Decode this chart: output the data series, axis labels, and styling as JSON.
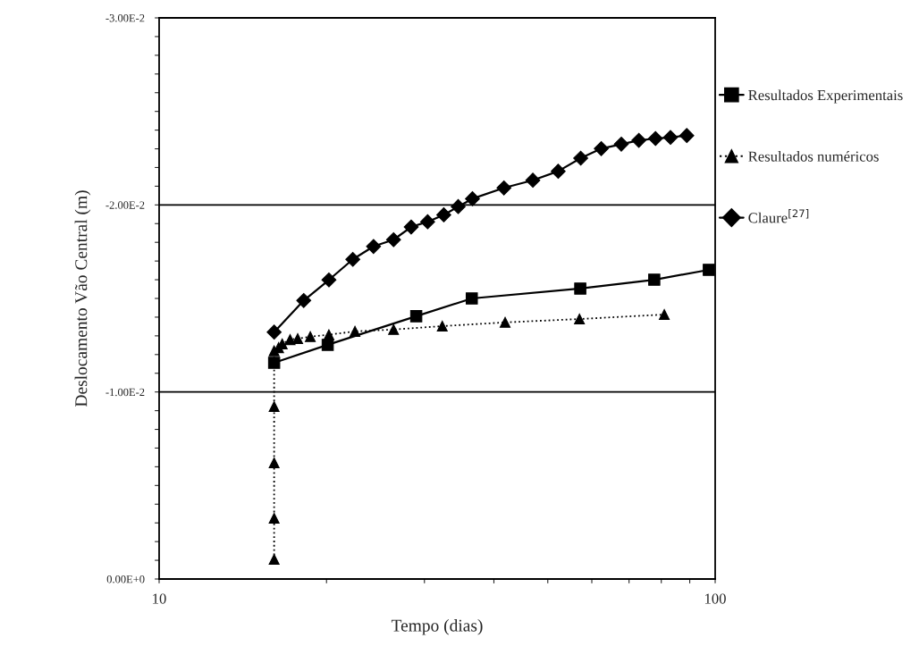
{
  "chart_data": {
    "type": "line",
    "xlabel": "Tempo (dias)",
    "ylabel": "Deslocamento Vão Central (m)",
    "log": "x",
    "grid": "y",
    "legend": "right",
    "xlim": [
      10,
      100
    ],
    "xticks": [
      10,
      {
        "value": 20,
        "label": null
      },
      {
        "value": 30,
        "label": null
      },
      {
        "value": 40,
        "label": null
      },
      {
        "value": 50,
        "label": null
      },
      {
        "value": 60,
        "label": null
      },
      {
        "value": 70,
        "label": null
      },
      {
        "value": 80,
        "label": null
      },
      {
        "value": 90,
        "label": null
      },
      100
    ],
    "ylim": [
      0,
      -0.03
    ],
    "yticks": [
      {
        "value": 0,
        "label": "0.00E+0"
      },
      {
        "value": -0.001,
        "label": null
      },
      {
        "value": -0.002,
        "label": null
      },
      {
        "value": -0.003,
        "label": null
      },
      {
        "value": -0.004,
        "label": null
      },
      {
        "value": -0.005,
        "label": null
      },
      {
        "value": -0.006,
        "label": null
      },
      {
        "value": -0.007,
        "label": null
      },
      {
        "value": -0.008,
        "label": null
      },
      {
        "value": -0.009,
        "label": null
      },
      {
        "value": -0.01,
        "label": "-1.00E-2"
      },
      {
        "value": -0.011,
        "label": null
      },
      {
        "value": -0.012,
        "label": null
      },
      {
        "value": -0.013,
        "label": null
      },
      {
        "value": -0.014,
        "label": null
      },
      {
        "value": -0.015,
        "label": null
      },
      {
        "value": -0.016,
        "label": null
      },
      {
        "value": -0.017,
        "label": null
      },
      {
        "value": -0.018,
        "label": null
      },
      {
        "value": -0.019,
        "label": null
      },
      {
        "value": -0.02,
        "label": "-2.00E-2"
      },
      {
        "value": -0.021,
        "label": null
      },
      {
        "value": -0.022,
        "label": null
      },
      {
        "value": -0.023,
        "label": null
      },
      {
        "value": -0.024,
        "label": null
      },
      {
        "value": -0.025,
        "label": null
      },
      {
        "value": -0.026,
        "label": null
      },
      {
        "value": -0.027,
        "label": null
      },
      {
        "value": -0.028,
        "label": null
      },
      {
        "value": -0.029,
        "label": null
      },
      {
        "value": -0.03,
        "label": "-3.00E-2"
      }
    ],
    "series": [
      {
        "name": "Resultados Experimentais",
        "color": "#000000",
        "marker": "square",
        "line_style": "solid",
        "x": [
          16.1,
          20.1,
          29.0,
          36.5,
          57.2,
          77.7,
          97.4
        ],
        "values": [
          -0.01156,
          -0.01252,
          -0.01405,
          -0.015,
          -0.01553,
          -0.016,
          -0.01653
        ]
      },
      {
        "name": "Resultados numéricos",
        "color": "#000000",
        "marker": "triangle",
        "line_style": "dotted",
        "x": [
          16.1,
          16.1,
          16.1,
          16.1,
          16.1,
          16.4,
          16.65,
          17.2,
          17.75,
          18.7,
          20.2,
          22.5,
          26.4,
          32.3,
          41.9,
          57.0,
          81.0
        ],
        "values": [
          -0.00105,
          -0.00325,
          -0.00621,
          -0.00922,
          -0.0122,
          -0.01237,
          -0.01257,
          -0.0128,
          -0.01285,
          -0.01296,
          -0.01306,
          -0.01324,
          -0.01334,
          -0.01352,
          -0.01372,
          -0.0139,
          -0.01414
        ]
      },
      {
        "name": "Claure$^{[27]}$",
        "color": "#000000",
        "marker": "diamond",
        "line_style": "solid",
        "x": [
          16.1,
          18.2,
          20.2,
          22.3,
          24.3,
          26.4,
          28.4,
          30.4,
          32.5,
          34.5,
          36.6,
          41.7,
          47.0,
          52.2,
          57.3,
          62.4,
          67.8,
          72.9,
          78.1,
          83.1,
          88.9
        ],
        "values": [
          -0.0132,
          -0.01489,
          -0.01599,
          -0.01709,
          -0.01778,
          -0.01814,
          -0.01882,
          -0.0191,
          -0.01947,
          -0.01991,
          -0.02033,
          -0.02091,
          -0.02132,
          -0.0218,
          -0.0225,
          -0.02301,
          -0.02325,
          -0.02345,
          -0.02355,
          -0.02361,
          -0.02371
        ]
      }
    ]
  }
}
